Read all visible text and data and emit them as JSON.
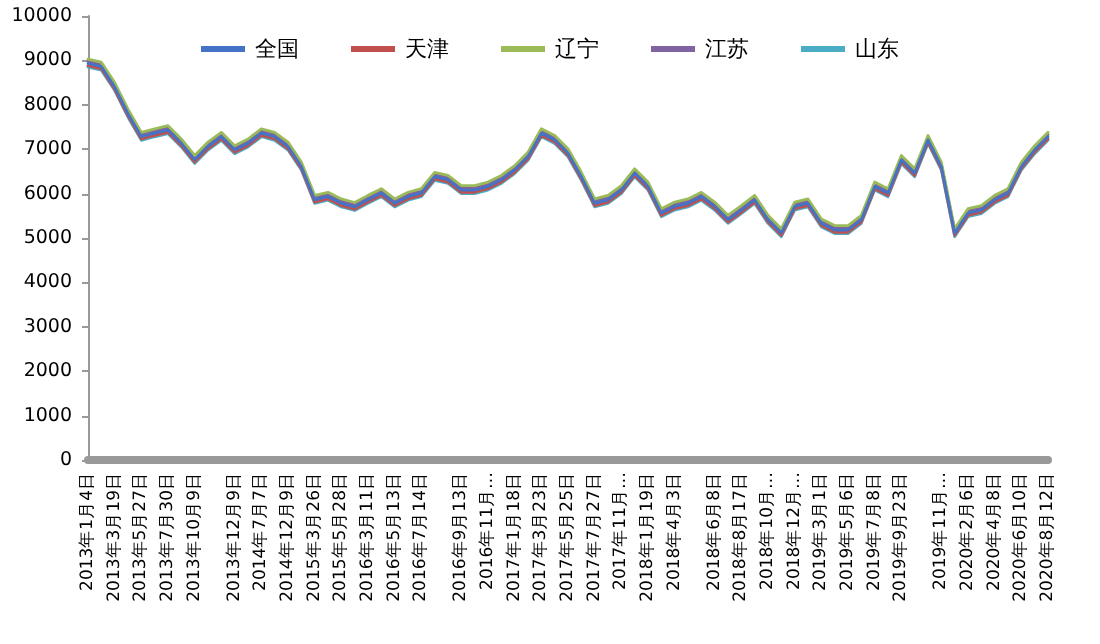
{
  "chart_data": {
    "type": "line",
    "categories": [
      "2013年1月4日",
      null,
      "2013年3月19日",
      null,
      "2013年5月27日",
      null,
      "2013年7月30日",
      null,
      "2013年10月9日",
      null,
      null,
      "2013年12月9日",
      null,
      "2014年7月7日",
      null,
      "2014年12月9日",
      null,
      "2015年3月26日",
      null,
      "2015年5月28日",
      null,
      "2016年3月11日",
      null,
      "2016年5月13日",
      null,
      "2016年7月14日",
      null,
      null,
      "2016年9月13日",
      null,
      "2016年11月…",
      null,
      "2017年1月18日",
      null,
      "2017年3月23日",
      null,
      "2017年5月25日",
      null,
      "2017年7月27日",
      null,
      "2017年11月…",
      null,
      "2018年1月19日",
      null,
      "2018年4月3日",
      null,
      null,
      "2018年6月8日",
      null,
      "2018年8月17日",
      null,
      "2018年10月…",
      null,
      "2018年12月…",
      null,
      "2019年3月1日",
      null,
      "2019年5月6日",
      null,
      "2019年7月8日",
      null,
      "2019年9月23日",
      null,
      null,
      "2019年11月…",
      null,
      "2020年2月6日",
      null,
      "2020年4月8日",
      null,
      "2020年6月10日",
      null,
      "2020年8月12日"
    ],
    "series": [
      {
        "name": "全国",
        "color": "#4472c4",
        "values": [
          8930,
          8860,
          8400,
          7800,
          7280,
          7360,
          7430,
          7130,
          6760,
          7060,
          7280,
          6980,
          7130,
          7360,
          7280,
          7060,
          6610,
          5860,
          5930,
          5780,
          5700,
          5860,
          6010,
          5780,
          5930,
          6010,
          6380,
          6310,
          6080,
          6080,
          6160,
          6310,
          6530,
          6830,
          7360,
          7210,
          6910,
          6380,
          5780,
          5860,
          6080,
          6460,
          6160,
          5560,
          5710,
          5780,
          5930,
          5710,
          5410,
          5630,
          5860,
          5410,
          5110,
          5710,
          5780,
          5330,
          5180,
          5180,
          5410,
          6160,
          6010,
          6760,
          6460,
          7210,
          6610,
          5110,
          5560,
          5630,
          5860,
          6010,
          6610,
          6980,
          7280
        ]
      },
      {
        "name": "天津",
        "color": "#c0504d",
        "values": [
          8880,
          8810,
          8350,
          7750,
          7230,
          7310,
          7380,
          7080,
          6710,
          7010,
          7230,
          6930,
          7080,
          7310,
          7230,
          7010,
          6560,
          5810,
          5880,
          5730,
          5650,
          5810,
          5960,
          5730,
          5880,
          5960,
          6330,
          6260,
          6030,
          6030,
          6110,
          6260,
          6480,
          6780,
          7310,
          7160,
          6860,
          6330,
          5730,
          5810,
          6030,
          6410,
          6110,
          5510,
          5660,
          5730,
          5880,
          5660,
          5360,
          5580,
          5810,
          5360,
          5060,
          5660,
          5730,
          5280,
          5130,
          5130,
          5360,
          6110,
          5960,
          6710,
          6410,
          7160,
          6560,
          5060,
          5510,
          5580,
          5810,
          5960,
          6560,
          6930,
          7230
        ]
      },
      {
        "name": "辽宁",
        "color": "#9bbb59",
        "values": [
          9030,
          8960,
          8500,
          7900,
          7380,
          7460,
          7530,
          7230,
          6860,
          7160,
          7380,
          7080,
          7230,
          7460,
          7380,
          7160,
          6710,
          5960,
          6030,
          5880,
          5800,
          5960,
          6110,
          5880,
          6030,
          6110,
          6480,
          6410,
          6180,
          6180,
          6260,
          6410,
          6630,
          6930,
          7460,
          7310,
          7010,
          6480,
          5880,
          5960,
          6180,
          6560,
          6260,
          5660,
          5810,
          5880,
          6030,
          5810,
          5510,
          5730,
          5960,
          5510,
          5210,
          5810,
          5880,
          5430,
          5280,
          5280,
          5510,
          6260,
          6110,
          6860,
          6560,
          7310,
          6710,
          5210,
          5660,
          5730,
          5960,
          6110,
          6710,
          7080,
          7380
        ]
      },
      {
        "name": "江苏",
        "color": "#8064a2",
        "values": [
          8980,
          8910,
          8450,
          7850,
          7330,
          7410,
          7480,
          7180,
          6810,
          7110,
          7330,
          7030,
          7180,
          7410,
          7330,
          7110,
          6660,
          5910,
          5980,
          5830,
          5750,
          5910,
          6060,
          5830,
          5980,
          6060,
          6430,
          6360,
          6130,
          6130,
          6210,
          6360,
          6580,
          6880,
          7410,
          7260,
          6960,
          6430,
          5830,
          5910,
          6130,
          6510,
          6210,
          5610,
          5760,
          5830,
          5980,
          5760,
          5460,
          5680,
          5910,
          5460,
          5160,
          5760,
          5830,
          5380,
          5230,
          5230,
          5460,
          6210,
          6060,
          6810,
          6510,
          7260,
          6660,
          5160,
          5610,
          5680,
          5910,
          6060,
          6660,
          7030,
          7330
        ]
      },
      {
        "name": "山东",
        "color": "#4bacc6",
        "values": [
          8850,
          8780,
          8320,
          7720,
          7200,
          7280,
          7350,
          7050,
          6680,
          6980,
          7200,
          6900,
          7050,
          7280,
          7200,
          6980,
          6530,
          5780,
          5850,
          5700,
          5620,
          5780,
          5930,
          5700,
          5850,
          5930,
          6300,
          6230,
          6000,
          6000,
          6080,
          6230,
          6450,
          6750,
          7280,
          7130,
          6830,
          6300,
          5700,
          5780,
          6000,
          6380,
          6080,
          5480,
          5630,
          5700,
          5850,
          5630,
          5330,
          5550,
          5780,
          5330,
          5030,
          5630,
          5700,
          5250,
          5100,
          5100,
          5330,
          6080,
          5930,
          6680,
          6380,
          7130,
          6530,
          5030,
          5480,
          5550,
          5780,
          5930,
          6530,
          6900,
          7200
        ]
      }
    ],
    "ylim": [
      0,
      10000
    ],
    "yticks": [
      0,
      1000,
      2000,
      3000,
      4000,
      5000,
      6000,
      7000,
      8000,
      9000,
      10000
    ],
    "grid": false,
    "legend": "top",
    "marker": "none",
    "line_style": "solid"
  }
}
